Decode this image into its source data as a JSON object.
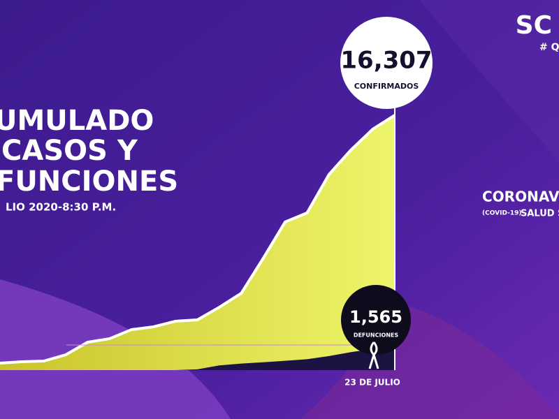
{
  "chart_data": {
    "type": "area",
    "title_lines": [
      "UMULADO",
      "CASOS Y",
      "FUNCIONES"
    ],
    "subtitle": "LIO 2020-8:30 P.M.",
    "categories": [
      null,
      null,
      null,
      null,
      null,
      null,
      null,
      null,
      null,
      null,
      null,
      null,
      null,
      null,
      null,
      null,
      null,
      null,
      "23 DE JULIO"
    ],
    "series": [
      {
        "name": "CONFIRMADOS",
        "color": "#dfe83a",
        "values": [
          447,
          536,
          581,
          983,
          1788,
          2012,
          2593,
          2771,
          3129,
          3218,
          4023,
          4917,
          7152,
          9476,
          10058,
          12516,
          14081,
          15422,
          16307
        ],
        "value_labels": [
          null,
          null,
          null,
          null,
          null,
          null,
          null,
          null,
          null,
          null,
          null,
          null,
          null,
          null,
          null,
          null,
          null,
          null,
          "16,307"
        ]
      },
      {
        "name": "DEFUNCIONES",
        "color": "#1b1442",
        "values": [
          0,
          0,
          0,
          0,
          0,
          0,
          0,
          0,
          0,
          50,
          300,
          420,
          500,
          600,
          700,
          900,
          1150,
          1350,
          1565
        ],
        "value_labels": [
          null,
          null,
          null,
          null,
          null,
          null,
          null,
          null,
          null,
          null,
          null,
          null,
          null,
          null,
          null,
          null,
          null,
          null,
          "1,565"
        ]
      }
    ]
  },
  "overlay": {
    "logo": "SC",
    "hashtag": "# Q",
    "program": "CORONAV",
    "program_tag": "(COVID-19)",
    "program_sub": "SALUD S"
  }
}
